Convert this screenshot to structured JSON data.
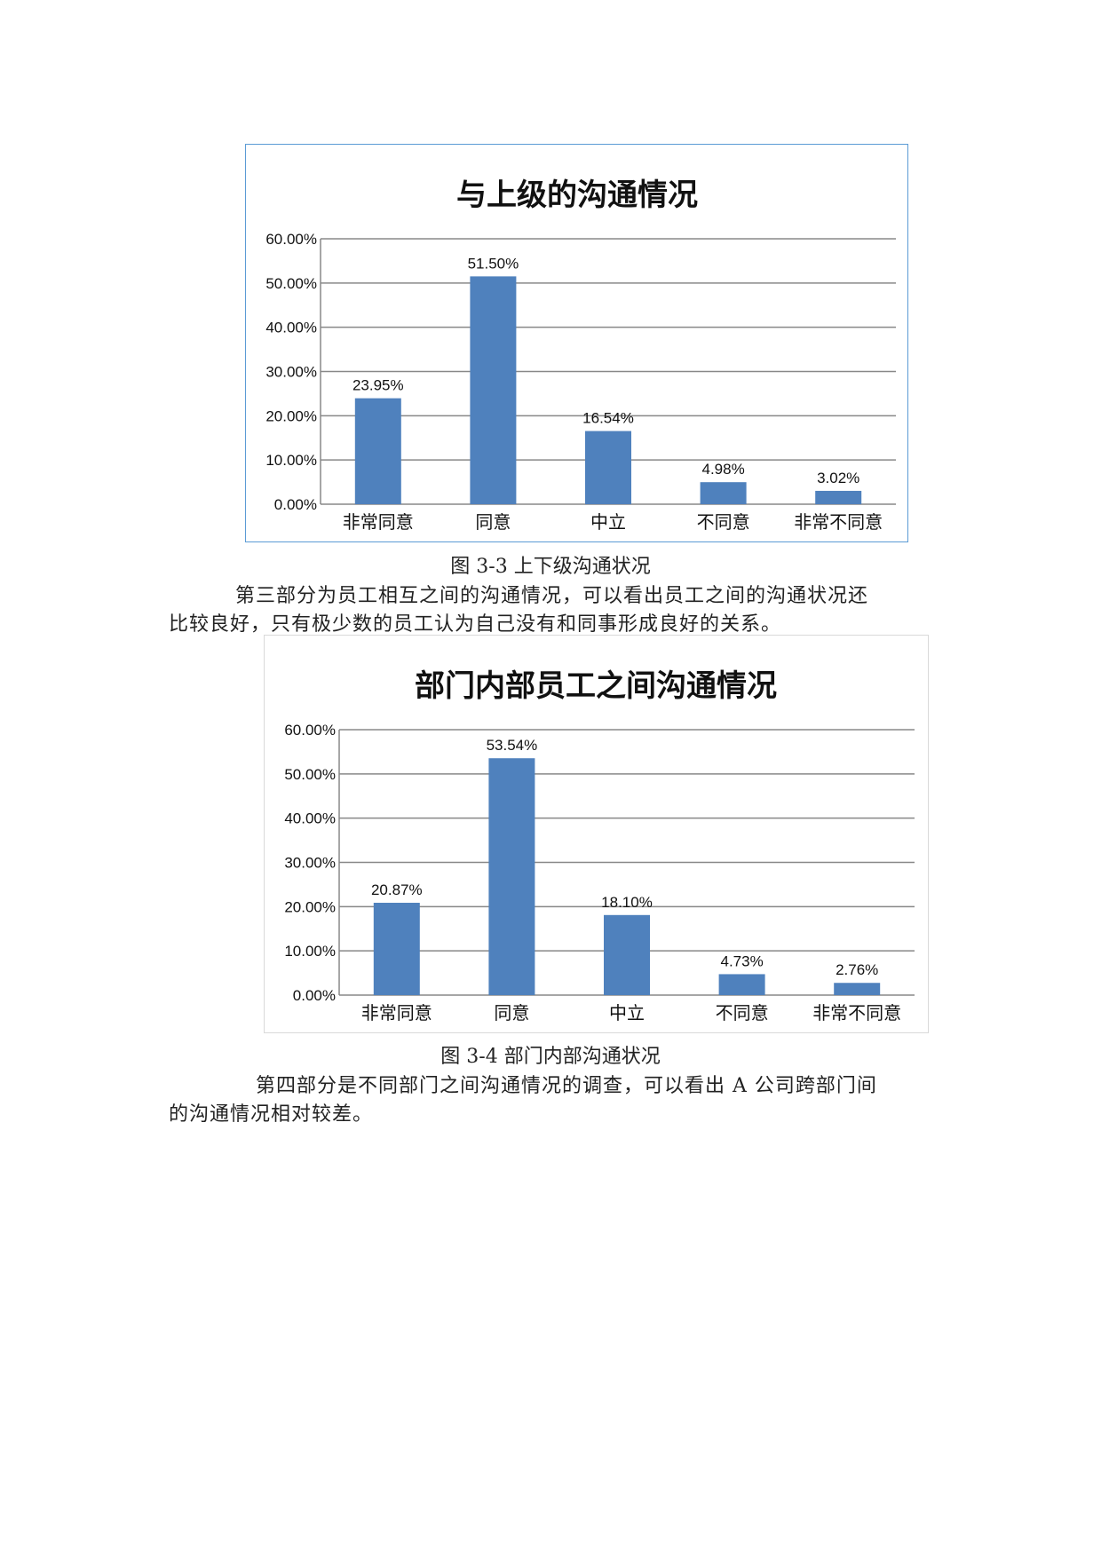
{
  "chart_data": [
    {
      "type": "bar",
      "title": "与上级的沟通情况",
      "categories": [
        "非常同意",
        "同意",
        "中立",
        "不同意",
        "非常不同意"
      ],
      "values": [
        23.95,
        51.5,
        16.54,
        4.98,
        3.02
      ],
      "labels": [
        "23.95%",
        "51.50%",
        "16.54%",
        "4.98%",
        "3.02%"
      ],
      "yticks": [
        "0.00%",
        "10.00%",
        "20.00%",
        "30.00%",
        "40.00%",
        "50.00%",
        "60.00%"
      ],
      "ylim": [
        0,
        60
      ],
      "grid": true,
      "bar_color": "#4f81bd",
      "border_color": "#5b9bd5"
    },
    {
      "type": "bar",
      "title": "部门内部员工之间沟通情况",
      "categories": [
        "非常同意",
        "同意",
        "中立",
        "不同意",
        "非常不同意"
      ],
      "values": [
        20.87,
        53.54,
        18.1,
        4.73,
        2.76
      ],
      "labels": [
        "20.87%",
        "53.54%",
        "18.10%",
        "4.73%",
        "2.76%"
      ],
      "yticks": [
        "0.00%",
        "10.00%",
        "20.00%",
        "30.00%",
        "40.00%",
        "50.00%",
        "60.00%"
      ],
      "ylim": [
        0,
        60
      ],
      "grid": true,
      "bar_color": "#4f81bd",
      "border_color": "#d9d9d9"
    }
  ],
  "captions": [
    "图 3-3  上下级沟通状况",
    "图 3-4  部门内部沟通状况"
  ],
  "paragraphs": [
    [
      "第三部分为员工相互之间的沟通情况，可以看出员工之间的沟通状况还",
      "比较良好，只有极少数的员工认为自己没有和同事形成良好的关系。"
    ],
    [
      "第四部分是不同部门之间沟通情况的调查，可以看出 A 公司跨部门间",
      "的沟通情况相对较差。"
    ]
  ]
}
